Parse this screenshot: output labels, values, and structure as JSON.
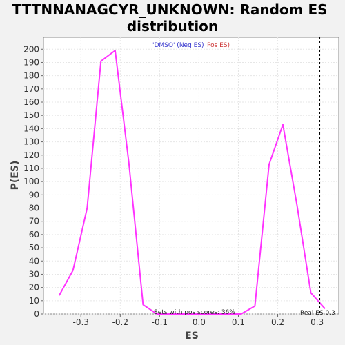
{
  "chart_data": {
    "type": "line",
    "title_line1": "TTTNNANAGCYR_UNKNOWN: Random ES",
    "title_line2": "distribution",
    "xlabel": "ES",
    "ylabel": "P(ES)",
    "xlim": [
      -0.395,
      0.355
    ],
    "ylim": [
      0,
      209
    ],
    "xticks": [
      {
        "value": -0.3,
        "label": "-0.3"
      },
      {
        "value": -0.2,
        "label": "-0.2"
      },
      {
        "value": -0.1,
        "label": "-0.1"
      },
      {
        "value": 0.0,
        "label": "0.0"
      },
      {
        "value": 0.1,
        "label": "0.1"
      },
      {
        "value": 0.2,
        "label": "0.2"
      },
      {
        "value": 0.3,
        "label": "0.3"
      }
    ],
    "yticks": [
      0,
      10,
      20,
      30,
      40,
      50,
      60,
      70,
      80,
      90,
      100,
      110,
      120,
      130,
      140,
      150,
      160,
      170,
      180,
      190,
      200
    ],
    "grid": true,
    "series": [
      {
        "color": "#ff33ff",
        "x": [
          -0.355,
          -0.32,
          -0.284,
          -0.249,
          -0.213,
          -0.178,
          -0.142,
          -0.107,
          0.107,
          0.142,
          0.178,
          0.213,
          0.249,
          0.284,
          0.32
        ],
        "y": [
          14,
          33,
          80,
          191,
          199,
          114,
          7,
          0,
          0,
          6,
          113,
          143,
          82,
          16,
          4
        ]
      }
    ],
    "real_es": {
      "value": 0.306,
      "label": "Real ES 0.3",
      "color": "#000000"
    },
    "legend": {
      "dmso_label": "'DMSO' (Neg ES)",
      "dmso_color": "#3333cc",
      "pos_label": "Pos ES)",
      "pos_color": "#cc3333"
    },
    "annotation": "Sets with pos scores: 36%"
  }
}
